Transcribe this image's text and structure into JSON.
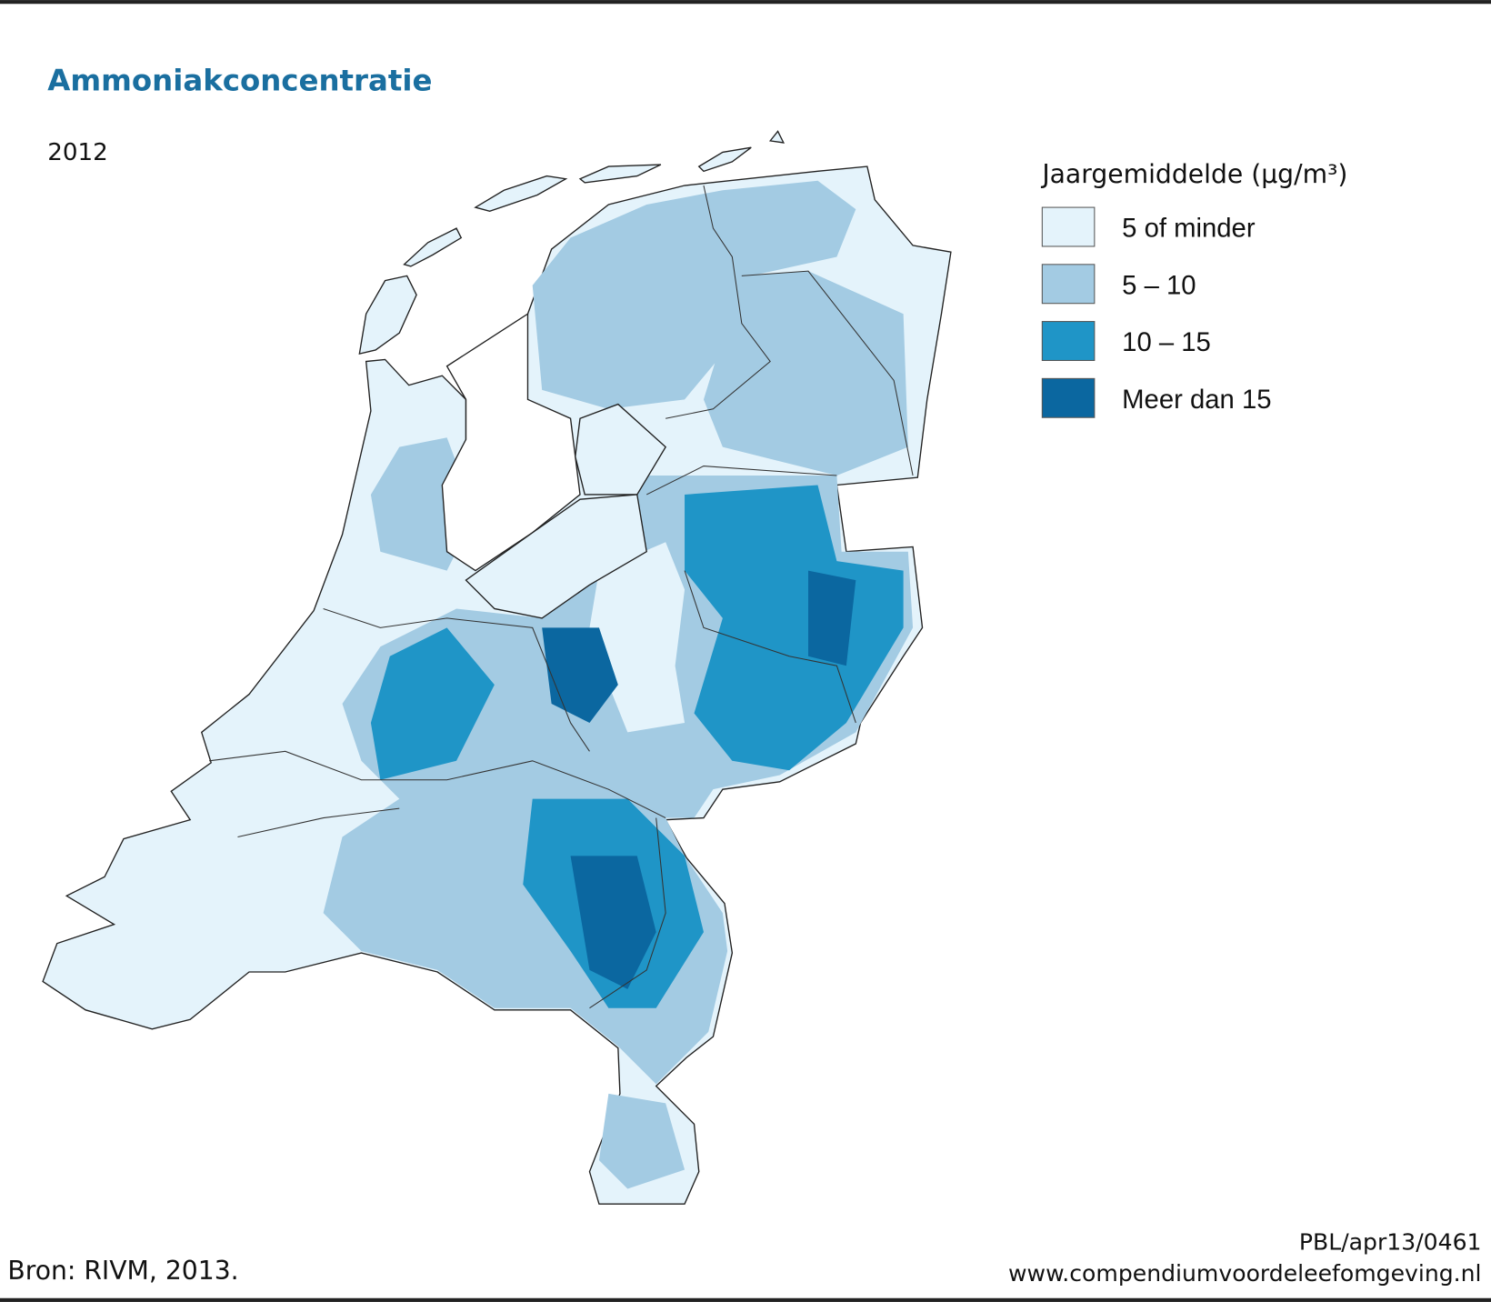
{
  "title": "Ammoniakconcentratie",
  "subtitle": "2012",
  "legend": {
    "title": "Jaargemiddelde (µg/m³)",
    "items": [
      {
        "label": "5 of minder",
        "color": "#e4f3fb"
      },
      {
        "label": "5 – 10",
        "color": "#a3cbe3"
      },
      {
        "label": "10 – 15",
        "color": "#1f95c7"
      },
      {
        "label": "Meer dan 15",
        "color": "#0b67a0"
      }
    ]
  },
  "source": "Bron: RIVM, 2013.",
  "code": "PBL/apr13/0461",
  "website": "www.compendiumvoordeleefomgeving.nl"
}
